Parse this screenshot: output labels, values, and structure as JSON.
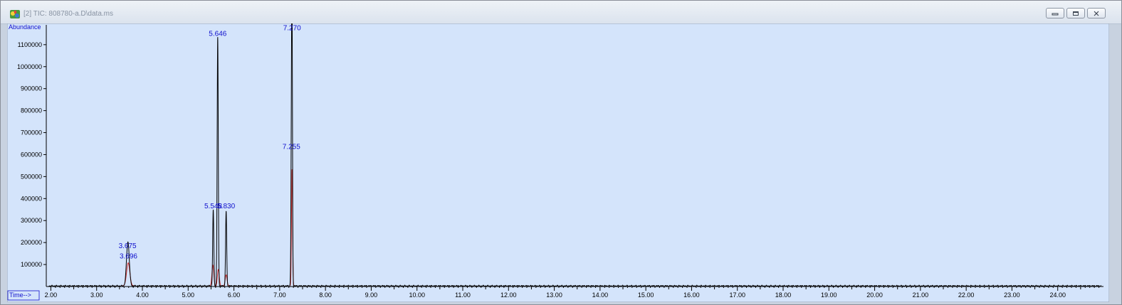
{
  "window": {
    "title": "[2] TIC: 808780-a.D\\data.ms",
    "buttons": {
      "minimize": "minimize-icon",
      "maximize": "maximize-icon",
      "close": "close-icon"
    }
  },
  "colors": {
    "plot_background": "#d4e4fb",
    "trace": "#000000",
    "integration": "#d03030",
    "label": "#1010cc"
  },
  "chart_data": {
    "type": "line",
    "title": "",
    "xlabel": "Time-->",
    "ylabel": "Abundance",
    "xlim": [
      1.9,
      25.0
    ],
    "ylim": [
      0,
      1190000
    ],
    "x_ticks": [
      2.0,
      3.0,
      4.0,
      5.0,
      6.0,
      7.0,
      8.0,
      9.0,
      10.0,
      11.0,
      12.0,
      13.0,
      14.0,
      15.0,
      16.0,
      17.0,
      18.0,
      19.0,
      20.0,
      21.0,
      22.0,
      23.0,
      24.0
    ],
    "x_tick_labels": [
      "2.00",
      "3.00",
      "4.00",
      "5.00",
      "6.00",
      "7.00",
      "8.00",
      "9.00",
      "10.00",
      "11.00",
      "12.00",
      "13.00",
      "14.00",
      "15.00",
      "16.00",
      "17.00",
      "18.00",
      "19.00",
      "20.00",
      "21.00",
      "22.00",
      "23.00",
      "24.00"
    ],
    "y_ticks": [
      100000,
      200000,
      300000,
      400000,
      500000,
      600000,
      700000,
      800000,
      900000,
      1000000,
      1100000
    ],
    "y_tick_labels": [
      "100000",
      "200000",
      "300000",
      "400000",
      "500000",
      "600000",
      "700000",
      "800000",
      "900000",
      "1000000",
      "1100000"
    ],
    "grid": false,
    "baseline": 3000,
    "peaks": [
      {
        "rt": 3.675,
        "height": 125000,
        "width": 0.028
      },
      {
        "rt": 3.696,
        "height": 90000,
        "width": 0.028
      },
      {
        "rt": 5.548,
        "height": 345000,
        "width": 0.012
      },
      {
        "rt": 5.646,
        "height": 1130000,
        "width": 0.012
      },
      {
        "rt": 5.83,
        "height": 340000,
        "width": 0.012
      },
      {
        "rt": 7.255,
        "height": 530000,
        "width": 0.01
      },
      {
        "rt": 7.27,
        "height": 1160000,
        "width": 0.01
      }
    ],
    "integrated_peaks": [
      {
        "rt": 3.69,
        "height": 105000,
        "width": 0.035
      },
      {
        "rt": 5.54,
        "height": 95000,
        "width": 0.02
      },
      {
        "rt": 5.66,
        "height": 75000,
        "width": 0.02
      },
      {
        "rt": 5.83,
        "height": 50000,
        "width": 0.02
      },
      {
        "rt": 7.27,
        "height": 530000,
        "width": 0.012
      }
    ],
    "annotations": [
      {
        "text": "3.675",
        "x": 3.675,
        "y": 175000
      },
      {
        "text": "3.696",
        "x": 3.696,
        "y": 127000
      },
      {
        "text": "5.548",
        "x": 5.548,
        "y": 355000
      },
      {
        "text": "5.646",
        "x": 5.646,
        "y": 1140000
      },
      {
        "text": "5.830",
        "x": 5.83,
        "y": 355000
      },
      {
        "text": "7.255",
        "x": 7.255,
        "y": 625000
      },
      {
        "text": "7.270",
        "x": 7.27,
        "y": 1165000
      }
    ]
  }
}
